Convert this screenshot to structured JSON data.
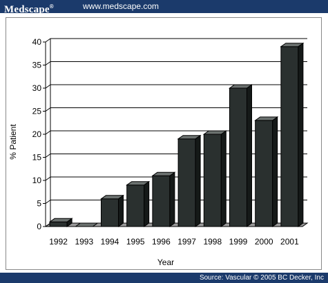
{
  "header": {
    "brand": "Medscape",
    "brand_mark": "®",
    "url": "www.medscape.com"
  },
  "footer": {
    "source": "Source: Vascular © 2005 BC Decker, Inc"
  },
  "colors": {
    "banner": "#1b3a6b",
    "bar_front": "#2a302f",
    "bar_side": "#151918",
    "bar_top": "#6b716f",
    "floor": "#9a9a9a"
  },
  "chart_data": {
    "type": "bar",
    "categories": [
      "1992",
      "1993",
      "1994",
      "1995",
      "1996",
      "1997",
      "1998",
      "1999",
      "2000",
      "2001"
    ],
    "values": [
      1,
      0,
      6,
      9,
      11,
      19,
      20,
      30,
      23,
      39
    ],
    "xlabel": "Year",
    "ylabel": "% Patient",
    "ylim": [
      0,
      40
    ],
    "yticks": [
      0,
      5,
      10,
      15,
      20,
      25,
      30,
      35,
      40
    ],
    "grid": true,
    "three_d": true
  }
}
